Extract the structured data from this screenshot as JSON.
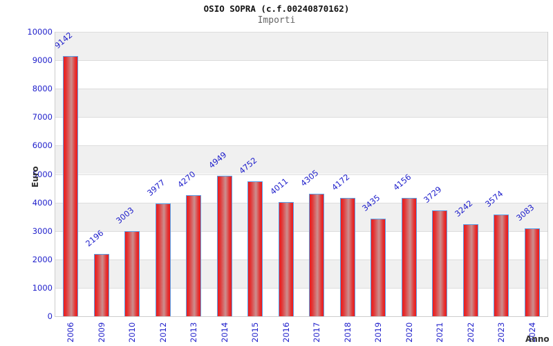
{
  "chart_data": {
    "type": "bar",
    "title": "OSIO SOPRA (c.f.00240870162)",
    "subtitle": "Importi",
    "xlabel": "Anno",
    "ylabel": "Euro",
    "categories": [
      "2006",
      "2009",
      "2010",
      "2012",
      "2013",
      "2014",
      "2015",
      "2016",
      "2017",
      "2018",
      "2019",
      "2020",
      "2021",
      "2022",
      "2023",
      "2024"
    ],
    "values": [
      9142,
      2196,
      3003,
      3977,
      4270,
      4949,
      4752,
      4011,
      4305,
      4172,
      3435,
      4156,
      3729,
      3242,
      3574,
      3083
    ],
    "ylim": [
      0,
      10000
    ],
    "ytick_step": 1000,
    "grid": "horizontal gridlines with alternating gray/white bands every 1000",
    "legend": "none",
    "bar_value_labels_rotated_deg": -40,
    "x_labels_rotated_deg": -90,
    "colors": {
      "bar_edge": "#ee1a1a",
      "bar_mid": "#e23434",
      "bar_center": "#cc8f8f",
      "bar_border": "#58a0ea",
      "label_blue": "#1e1ecb",
      "band_gray": "#f0f0f0",
      "gridline": "#dcdcdc",
      "axis_line": "#cccccc",
      "title_color": "#111111",
      "subtitle_color": "#666666",
      "axis_label_color": "#333333"
    }
  }
}
